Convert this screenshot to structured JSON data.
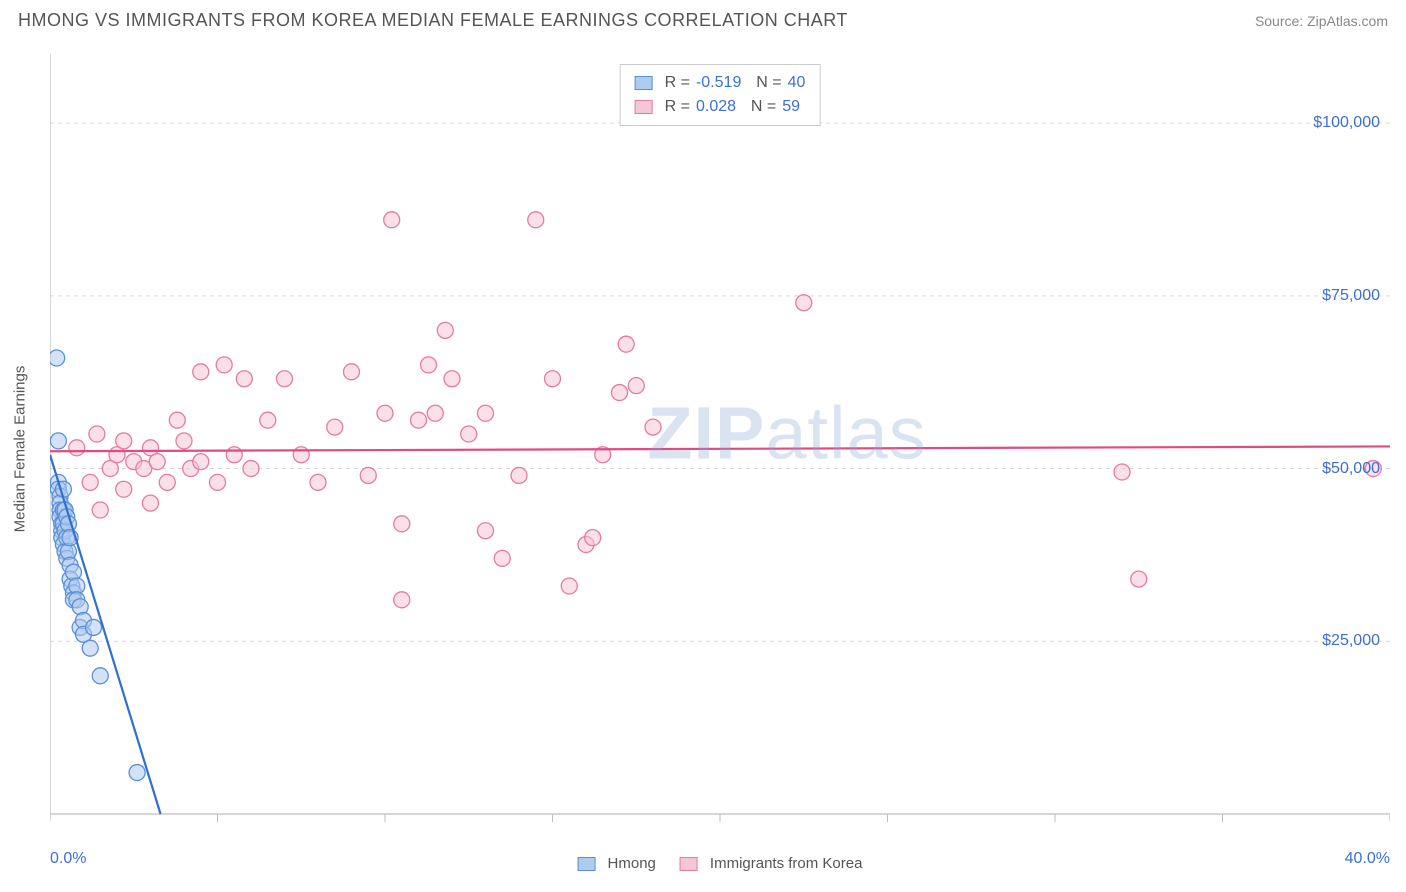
{
  "title": "HMONG VS IMMIGRANTS FROM KOREA MEDIAN FEMALE EARNINGS CORRELATION CHART",
  "source": "Source: ZipAtlas.com",
  "watermark_a": "ZIP",
  "watermark_b": "atlas",
  "chart": {
    "type": "scatter",
    "ylabel": "Median Female Earnings",
    "xrange": [
      0.0,
      40.0
    ],
    "yrange": [
      0,
      110000
    ],
    "xtick_min_label": "0.0%",
    "xtick_max_label": "40.0%",
    "yticks": [
      25000,
      50000,
      75000,
      100000
    ],
    "ytick_labels": [
      "$25,000",
      "$50,000",
      "$75,000",
      "$100,000"
    ],
    "grid_color": "#d9d9d9",
    "axis_color": "#bdbdbd",
    "tick_color": "#bdbdbd",
    "background": "#ffffff",
    "marker_radius": 8,
    "marker_stroke_width": 1.3,
    "series": [
      {
        "name": "Hmong",
        "fill": "#aecbf0",
        "stroke": "#5a8fd8",
        "fill_opacity": 0.55,
        "R": "-0.519",
        "N": "40",
        "trend": {
          "x1": 0.0,
          "y1": 52000,
          "x2": 3.3,
          "y2": 0,
          "color": "#2f6fd0",
          "width": 2.2
        },
        "points": [
          [
            0.2,
            66000
          ],
          [
            0.25,
            54000
          ],
          [
            0.25,
            48000
          ],
          [
            0.25,
            47000
          ],
          [
            0.3,
            46000
          ],
          [
            0.3,
            45000
          ],
          [
            0.3,
            44000
          ],
          [
            0.3,
            43000
          ],
          [
            0.35,
            42000
          ],
          [
            0.35,
            41000
          ],
          [
            0.35,
            40000
          ],
          [
            0.4,
            47000
          ],
          [
            0.4,
            44000
          ],
          [
            0.4,
            42000
          ],
          [
            0.4,
            39000
          ],
          [
            0.45,
            44000
          ],
          [
            0.45,
            41000
          ],
          [
            0.45,
            38000
          ],
          [
            0.5,
            43000
          ],
          [
            0.5,
            40000
          ],
          [
            0.5,
            37000
          ],
          [
            0.55,
            42000
          ],
          [
            0.55,
            38000
          ],
          [
            0.6,
            40000
          ],
          [
            0.6,
            36000
          ],
          [
            0.6,
            34000
          ],
          [
            0.65,
            33000
          ],
          [
            0.7,
            35000
          ],
          [
            0.7,
            32000
          ],
          [
            0.7,
            31000
          ],
          [
            0.8,
            33000
          ],
          [
            0.8,
            31000
          ],
          [
            0.9,
            30000
          ],
          [
            0.9,
            27000
          ],
          [
            1.0,
            28000
          ],
          [
            1.0,
            26000
          ],
          [
            1.2,
            24000
          ],
          [
            1.3,
            27000
          ],
          [
            1.5,
            20000
          ],
          [
            2.6,
            6000
          ]
        ]
      },
      {
        "name": "Immigrants from Korea",
        "fill": "#f7c6d4",
        "stroke": "#e77aa0",
        "fill_opacity": 0.55,
        "R": " 0.028",
        "N": "59",
        "trend": {
          "x1": 0.0,
          "y1": 52500,
          "x2": 40.0,
          "y2": 53200,
          "color": "#e04b83",
          "width": 2.2
        },
        "points": [
          [
            0.8,
            53000
          ],
          [
            1.2,
            48000
          ],
          [
            1.4,
            55000
          ],
          [
            1.5,
            44000
          ],
          [
            1.8,
            50000
          ],
          [
            2.0,
            52000
          ],
          [
            2.2,
            47000
          ],
          [
            2.2,
            54000
          ],
          [
            2.5,
            51000
          ],
          [
            2.8,
            50000
          ],
          [
            3.0,
            53000
          ],
          [
            3.0,
            45000
          ],
          [
            3.2,
            51000
          ],
          [
            3.5,
            48000
          ],
          [
            3.8,
            57000
          ],
          [
            4.0,
            54000
          ],
          [
            4.2,
            50000
          ],
          [
            4.5,
            64000
          ],
          [
            4.5,
            51000
          ],
          [
            5.0,
            48000
          ],
          [
            5.2,
            65000
          ],
          [
            5.5,
            52000
          ],
          [
            5.8,
            63000
          ],
          [
            6.0,
            50000
          ],
          [
            6.5,
            57000
          ],
          [
            7.0,
            63000
          ],
          [
            7.5,
            52000
          ],
          [
            8.0,
            48000
          ],
          [
            8.5,
            56000
          ],
          [
            9.0,
            64000
          ],
          [
            9.5,
            49000
          ],
          [
            10.0,
            58000
          ],
          [
            10.2,
            86000
          ],
          [
            10.5,
            42000
          ],
          [
            10.5,
            31000
          ],
          [
            11.0,
            57000
          ],
          [
            11.3,
            65000
          ],
          [
            11.5,
            58000
          ],
          [
            11.8,
            70000
          ],
          [
            12.0,
            63000
          ],
          [
            12.5,
            55000
          ],
          [
            13.0,
            58000
          ],
          [
            13.0,
            41000
          ],
          [
            13.5,
            37000
          ],
          [
            14.0,
            49000
          ],
          [
            14.5,
            86000
          ],
          [
            15.0,
            63000
          ],
          [
            15.5,
            33000
          ],
          [
            16.0,
            39000
          ],
          [
            16.2,
            40000
          ],
          [
            16.5,
            52000
          ],
          [
            17.0,
            61000
          ],
          [
            17.2,
            68000
          ],
          [
            17.5,
            62000
          ],
          [
            18.0,
            56000
          ],
          [
            22.5,
            74000
          ],
          [
            32.0,
            49500
          ],
          [
            32.5,
            34000
          ],
          [
            39.5,
            50000
          ]
        ]
      }
    ]
  },
  "bottom_legend": [
    {
      "label": "Hmong",
      "fill": "#aecbf0",
      "stroke": "#5a8fd8"
    },
    {
      "label": "Immigrants from Korea",
      "fill": "#f7c6d4",
      "stroke": "#e77aa0"
    }
  ]
}
